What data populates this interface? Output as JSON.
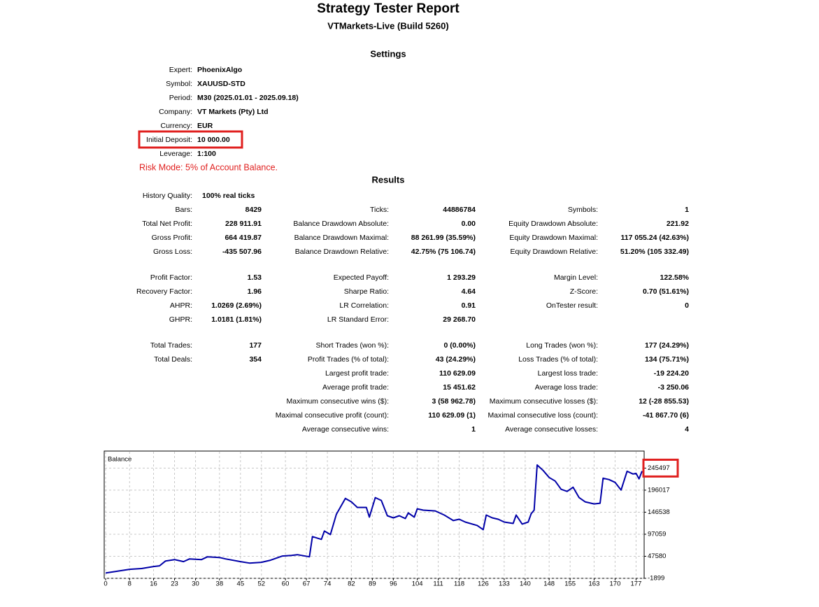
{
  "header": {
    "title": "Strategy Tester Report",
    "subtitle": "VTMarkets-Live (Build 5260)"
  },
  "settings": {
    "title": "Settings",
    "rows": [
      {
        "label": "Expert:",
        "value": "PhoenixAlgo"
      },
      {
        "label": "Symbol:",
        "value": "XAUUSD-STD"
      },
      {
        "label": "Period:",
        "value": "M30 (2025.01.01 - 2025.09.18)"
      },
      {
        "label": "Company:",
        "value": "VT Markets (Pty) Ltd"
      },
      {
        "label": "Currency:",
        "value": "EUR"
      },
      {
        "label": "Initial Deposit:",
        "value": "10 000.00"
      },
      {
        "label": "Leverage:",
        "value": "1:100"
      }
    ],
    "note": "Risk Mode: 5% of Account Balance."
  },
  "results": {
    "title": "Results",
    "groups": [
      [
        [
          {
            "label": "History Quality:",
            "value": "100% real ticks"
          },
          null,
          null
        ],
        [
          {
            "label": "Bars:",
            "value": "8429"
          },
          {
            "label": "Ticks:",
            "value": "44886784"
          },
          {
            "label": "Symbols:",
            "value": "1"
          }
        ],
        [
          {
            "label": "Total Net Profit:",
            "value": "228 911.91"
          },
          {
            "label": "Balance Drawdown Absolute:",
            "value": "0.00"
          },
          {
            "label": "Equity Drawdown Absolute:",
            "value": "221.92"
          }
        ],
        [
          {
            "label": "Gross Profit:",
            "value": "664 419.87"
          },
          {
            "label": "Balance Drawdown Maximal:",
            "value": "88 261.99 (35.59%)"
          },
          {
            "label": "Equity Drawdown Maximal:",
            "value": "117 055.24 (42.63%)"
          }
        ],
        [
          {
            "label": "Gross Loss:",
            "value": "-435 507.96"
          },
          {
            "label": "Balance Drawdown Relative:",
            "value": "42.75% (75 106.74)"
          },
          {
            "label": "Equity Drawdown Relative:",
            "value": "51.20% (105 332.49)"
          }
        ]
      ],
      [
        [
          {
            "label": "Profit Factor:",
            "value": "1.53"
          },
          {
            "label": "Expected Payoff:",
            "value": "1 293.29"
          },
          {
            "label": "Margin Level:",
            "value": "122.58%"
          }
        ],
        [
          {
            "label": "Recovery Factor:",
            "value": "1.96"
          },
          {
            "label": "Sharpe Ratio:",
            "value": "4.64"
          },
          {
            "label": "Z-Score:",
            "value": "0.70 (51.61%)"
          }
        ],
        [
          {
            "label": "AHPR:",
            "value": "1.0269 (2.69%)"
          },
          {
            "label": "LR Correlation:",
            "value": "0.91"
          },
          {
            "label": "OnTester result:",
            "value": "0"
          }
        ],
        [
          {
            "label": "GHPR:",
            "value": "1.0181 (1.81%)"
          },
          {
            "label": "LR Standard Error:",
            "value": "29 268.70"
          },
          null
        ]
      ],
      [
        [
          {
            "label": "Total Trades:",
            "value": "177"
          },
          {
            "label": "Short Trades (won %):",
            "value": "0 (0.00%)"
          },
          {
            "label": "Long Trades (won %):",
            "value": "177 (24.29%)"
          }
        ],
        [
          {
            "label": "Total Deals:",
            "value": "354"
          },
          {
            "label": "Profit Trades (% of total):",
            "value": "43 (24.29%)"
          },
          {
            "label": "Loss Trades (% of total):",
            "value": "134 (75.71%)"
          }
        ],
        [
          null,
          {
            "label": "Largest profit trade:",
            "value": "110 629.09"
          },
          {
            "label": "Largest loss trade:",
            "value": "-19 224.20"
          }
        ],
        [
          null,
          {
            "label": "Average profit trade:",
            "value": "15 451.62"
          },
          {
            "label": "Average loss trade:",
            "value": "-3 250.06"
          }
        ],
        [
          null,
          {
            "label": "Maximum consecutive wins ($):",
            "value": "3 (58 962.78)"
          },
          {
            "label": "Maximum consecutive losses ($):",
            "value": "12 (-28 855.53)"
          }
        ],
        [
          null,
          {
            "label": "Maximal consecutive profit (count):",
            "value": "110 629.09 (1)"
          },
          {
            "label": "Maximal consecutive loss (count):",
            "value": "-41 867.70 (6)"
          }
        ],
        [
          null,
          {
            "label": "Average consecutive wins:",
            "value": "1"
          },
          {
            "label": "Average consecutive losses:",
            "value": "4"
          }
        ]
      ]
    ]
  },
  "chart_data": {
    "type": "line",
    "x": [
      0,
      8,
      12,
      16,
      18,
      20,
      23,
      26,
      28,
      32,
      34,
      38,
      40,
      45,
      48,
      52,
      55,
      59,
      62,
      64,
      68,
      69,
      72,
      73,
      75,
      77,
      80,
      82,
      84,
      87,
      88,
      90,
      92,
      94,
      96,
      98,
      100,
      101,
      103,
      104,
      106,
      110,
      113,
      116,
      118,
      120,
      124,
      126,
      127,
      129,
      131,
      133,
      136,
      137,
      139,
      141,
      142,
      143,
      144,
      146,
      148,
      150,
      152,
      154,
      156,
      158,
      160,
      162,
      163,
      165,
      166,
      168,
      170,
      172,
      174,
      176,
      177,
      178,
      179
    ],
    "series": [
      {
        "name": "Balance",
        "color": "#0000a8",
        "values": [
          10000,
          18400,
          20000,
          24600,
          26200,
          37100,
          40200,
          35600,
          41800,
          40200,
          46500,
          44900,
          41800,
          35600,
          32400,
          34000,
          38700,
          48100,
          49600,
          51200,
          46500,
          91800,
          85500,
          104200,
          96400,
          141700,
          177600,
          169800,
          157300,
          157300,
          135500,
          179200,
          172900,
          138600,
          133900,
          138600,
          132300,
          144800,
          135500,
          154200,
          151100,
          149500,
          140200,
          127700,
          130800,
          124500,
          116700,
          107400,
          140200,
          133900,
          130800,
          124500,
          121400,
          140200,
          119900,
          124500,
          143300,
          151100,
          252500,
          240100,
          224400,
          216600,
          197900,
          193200,
          202600,
          179200,
          169800,
          166700,
          165100,
          166700,
          222900,
          219800,
          213500,
          196300,
          238500,
          232300,
          233800,
          221300,
          238900
        ]
      }
    ],
    "xlim": [
      0,
      179
    ],
    "ylim": [
      -1899,
      283800
    ],
    "xticks": [
      0,
      8,
      16,
      23,
      30,
      38,
      45,
      52,
      60,
      67,
      74,
      82,
      89,
      96,
      104,
      111,
      118,
      126,
      133,
      140,
      148,
      155,
      163,
      170,
      177
    ],
    "yticks": [
      -1899,
      47580,
      97059,
      146538,
      196017,
      245497
    ],
    "grid": true
  }
}
